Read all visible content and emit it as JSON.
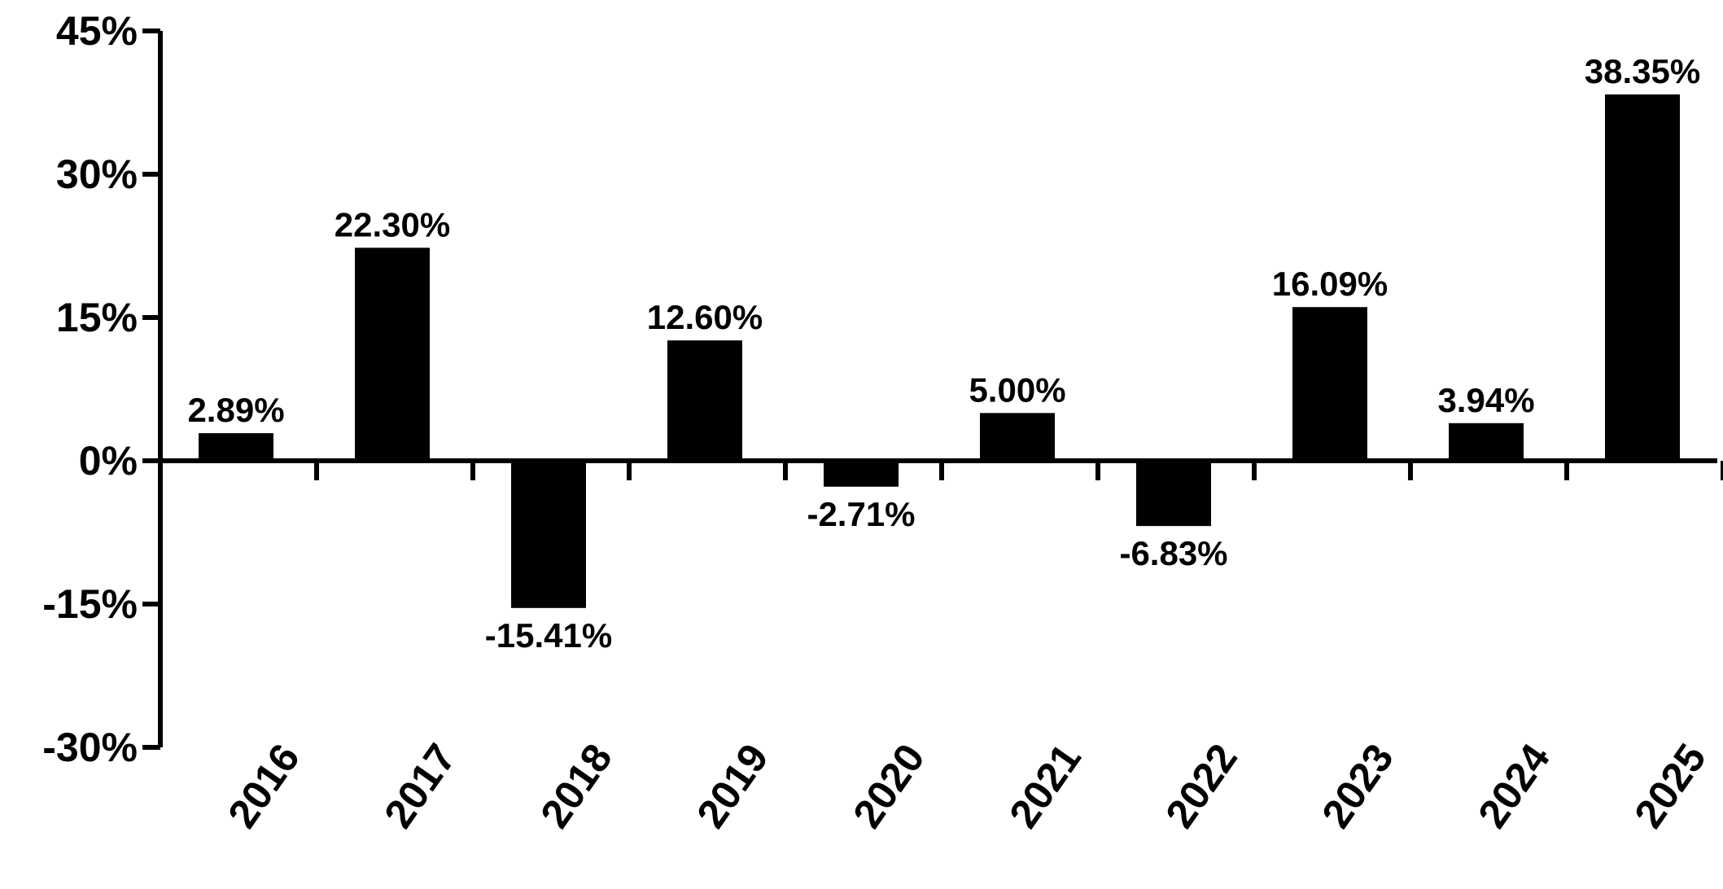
{
  "chart_data": {
    "type": "bar",
    "categories": [
      "2016",
      "2017",
      "2018",
      "2019",
      "2020",
      "2021",
      "2022",
      "2023",
      "2024",
      "2025"
    ],
    "values": [
      2.89,
      22.3,
      -15.41,
      12.6,
      -2.71,
      5.0,
      -6.83,
      16.09,
      3.94,
      38.35
    ],
    "data_labels": [
      "2.89%",
      "22.30%",
      "-15.41%",
      "12.60%",
      "-2.71%",
      "5.00%",
      "-6.83%",
      "16.09%",
      "3.94%",
      "38.35%"
    ],
    "title": "",
    "xlabel": "",
    "ylabel": "",
    "ylim": [
      -30,
      45
    ],
    "yticks": [
      -30,
      -15,
      0,
      15,
      30,
      45
    ],
    "ytick_labels": [
      "-30%",
      "-15%",
      "0%",
      "15%",
      "30%",
      "45%"
    ],
    "grid": false,
    "legend": "none",
    "bar_color": "#000000"
  }
}
